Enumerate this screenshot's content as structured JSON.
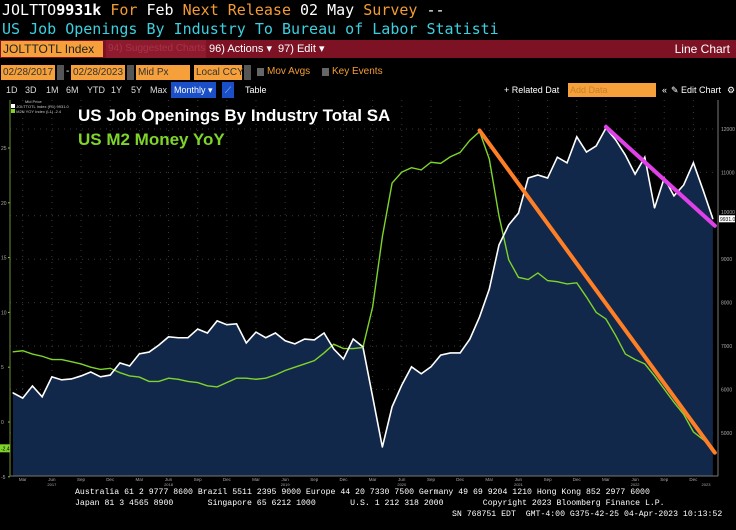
{
  "header": {
    "ticker": "JOLTTO",
    "last_value": "9931k",
    "for_label": "For",
    "period": "Feb",
    "next_release_label": "Next Release",
    "next_release_date": "02 May",
    "survey_label": "Survey",
    "survey_value": "--",
    "description": "US Job Openings By Industry To Bureau of Labor Statisti"
  },
  "toolbar": {
    "security": "JOLTTOTL Index",
    "suggested_charts": "94) Suggested Charts",
    "actions": "96) Actions ▾",
    "edit": "97) Edit ▾",
    "chart_type": "Line Chart"
  },
  "settings": {
    "start_date": "02/28/2017",
    "date_sep": "-",
    "end_date": "02/28/2023",
    "price": "Mid Px",
    "currency": "Local CCY",
    "mov_avgs": "Mov Avgs",
    "key_events": "Key Events"
  },
  "periods": [
    "1D",
    "3D",
    "1M",
    "6M",
    "YTD",
    "1Y",
    "5Y",
    "Max"
  ],
  "frequency": "Monthly ▾",
  "table_label": "Table",
  "related_data": "+ Related Dat",
  "add_data_placeholder": "Add Data",
  "collapse": "«",
  "edit_chart": "✎ Edit Chart",
  "colors": {
    "accent_orange": "#f39c34",
    "toolbar_red": "#7d1224",
    "jolts": "#ffffff",
    "m2": "#7fd42a",
    "fill": "#12284a",
    "trend_orange": "#ff7f27",
    "trend_magenta": "#e040e8"
  },
  "chart_data": {
    "type": "line",
    "title_overlay": "US Job Openings By Industry Total SA",
    "subtitle_overlay": "US M2 Money YoY",
    "legend_header": "Mid Price",
    "legend_placement": "top-left",
    "grid": true,
    "x": [
      "2017-02",
      "2017-03",
      "2017-04",
      "2017-05",
      "2017-06",
      "2017-07",
      "2017-08",
      "2017-09",
      "2017-10",
      "2017-11",
      "2017-12",
      "2018-01",
      "2018-02",
      "2018-03",
      "2018-04",
      "2018-05",
      "2018-06",
      "2018-07",
      "2018-08",
      "2018-09",
      "2018-10",
      "2018-11",
      "2018-12",
      "2019-01",
      "2019-02",
      "2019-03",
      "2019-04",
      "2019-05",
      "2019-06",
      "2019-07",
      "2019-08",
      "2019-09",
      "2019-10",
      "2019-11",
      "2019-12",
      "2020-01",
      "2020-02",
      "2020-03",
      "2020-04",
      "2020-05",
      "2020-06",
      "2020-07",
      "2020-08",
      "2020-09",
      "2020-10",
      "2020-11",
      "2020-12",
      "2021-01",
      "2021-02",
      "2021-03",
      "2021-04",
      "2021-05",
      "2021-06",
      "2021-07",
      "2021-08",
      "2021-09",
      "2021-10",
      "2021-11",
      "2021-12",
      "2022-01",
      "2022-02",
      "2022-03",
      "2022-04",
      "2022-05",
      "2022-06",
      "2022-07",
      "2022-08",
      "2022-09",
      "2022-10",
      "2022-11",
      "2022-12",
      "2023-01",
      "2023-02"
    ],
    "x_tick_labels": [
      "Mar",
      "Jun",
      "Sep",
      "Dec",
      "Mar",
      "Jun",
      "Sep",
      "Dec",
      "Mar",
      "Jun",
      "Sep",
      "Dec",
      "Mar",
      "Jun",
      "Sep",
      "Dec",
      "Mar",
      "Jun",
      "Sep",
      "Dec",
      "Mar",
      "Jun",
      "Sep",
      "Dec"
    ],
    "x_year_labels": [
      "2017",
      "2018",
      "2019",
      "2020",
      "2021",
      "2022",
      "2023"
    ],
    "left_axis": {
      "ylim": [
        -5,
        28
      ],
      "ticks": [
        "-5",
        "0",
        "5",
        "10",
        "15",
        "20",
        "25"
      ],
      "last_label": "-2.4"
    },
    "right_axis": {
      "ylim": [
        4300,
        12700
      ],
      "ticks": [
        "5000",
        "6000",
        "7000",
        "8000",
        "9000",
        "10000",
        "11000",
        "12000"
      ],
      "last_label": "9931.0"
    },
    "series": [
      {
        "name": "JOLTTOTL Index (R1)",
        "legend_value": "9931.0",
        "axis": "right",
        "style": "line-area",
        "values": [
          5920,
          5800,
          6080,
          5830,
          6290,
          6220,
          6240,
          6310,
          6400,
          6290,
          6330,
          6610,
          6540,
          6820,
          6860,
          7020,
          7210,
          7190,
          7190,
          7390,
          7300,
          7580,
          7490,
          7510,
          7070,
          7320,
          7190,
          7300,
          7120,
          7050,
          7160,
          7140,
          7300,
          6930,
          6700,
          7160,
          6980,
          5830,
          4670,
          5600,
          6100,
          6520,
          6360,
          6520,
          6790,
          6840,
          6840,
          7160,
          7670,
          8310,
          9330,
          9790,
          10060,
          10870,
          10940,
          10870,
          11350,
          11220,
          11820,
          11470,
          11610,
          12020,
          11750,
          11400,
          10960,
          11350,
          10180,
          10870,
          10460,
          10710,
          11220,
          10590,
          9931
        ]
      },
      {
        "name": "M2N YOY Index (L1)",
        "legend_value": "-2.4",
        "axis": "left",
        "style": "line",
        "values": [
          6.4,
          6.5,
          6.2,
          6.0,
          5.7,
          5.7,
          5.5,
          5.3,
          5.0,
          4.8,
          4.9,
          4.5,
          4.2,
          4.1,
          3.7,
          3.7,
          4.0,
          3.9,
          3.7,
          3.6,
          3.3,
          3.2,
          3.6,
          4.0,
          4.0,
          3.9,
          4.0,
          4.3,
          4.7,
          5.0,
          5.3,
          5.6,
          6.3,
          7.1,
          6.7,
          6.7,
          6.8,
          10.5,
          16.9,
          21.8,
          22.8,
          23.2,
          23.0,
          23.7,
          23.6,
          24.2,
          24.6,
          25.7,
          26.5,
          24.0,
          18.8,
          14.8,
          13.2,
          13.0,
          13.6,
          12.9,
          12.8,
          12.6,
          12.7,
          11.4,
          10.0,
          9.4,
          7.9,
          6.2,
          5.7,
          5.3,
          4.2,
          3.0,
          1.8,
          0.7,
          -0.9,
          -1.6,
          -2.4
        ]
      }
    ],
    "annotations": [
      {
        "type": "trendline",
        "color": "#ff7f27",
        "axis": "left",
        "from": [
          "2021-02",
          26.6
        ],
        "to": [
          "2023-02",
          -2.8
        ]
      },
      {
        "type": "trendline",
        "color": "#e040e8",
        "axis": "right",
        "from": [
          "2022-03",
          12050
        ],
        "to": [
          "2023-02",
          9770
        ]
      }
    ]
  },
  "footer": {
    "line1": "Australia 61 2 9777 8600 Brazil 5511 2395 9000 Europe 44 20 7330 7500 Germany 49 69 9204 1210 Hong Kong 852 2977 6000",
    "line2": "Japan 81 3 4565 8900       Singapore 65 6212 1000       U.S. 1 212 318 2000        Copyright 2023 Bloomberg Finance L.P.",
    "line3": "SN 768751 EDT  GMT-4:00 G375-42-25 04-Apr-2023 10:13:52"
  }
}
